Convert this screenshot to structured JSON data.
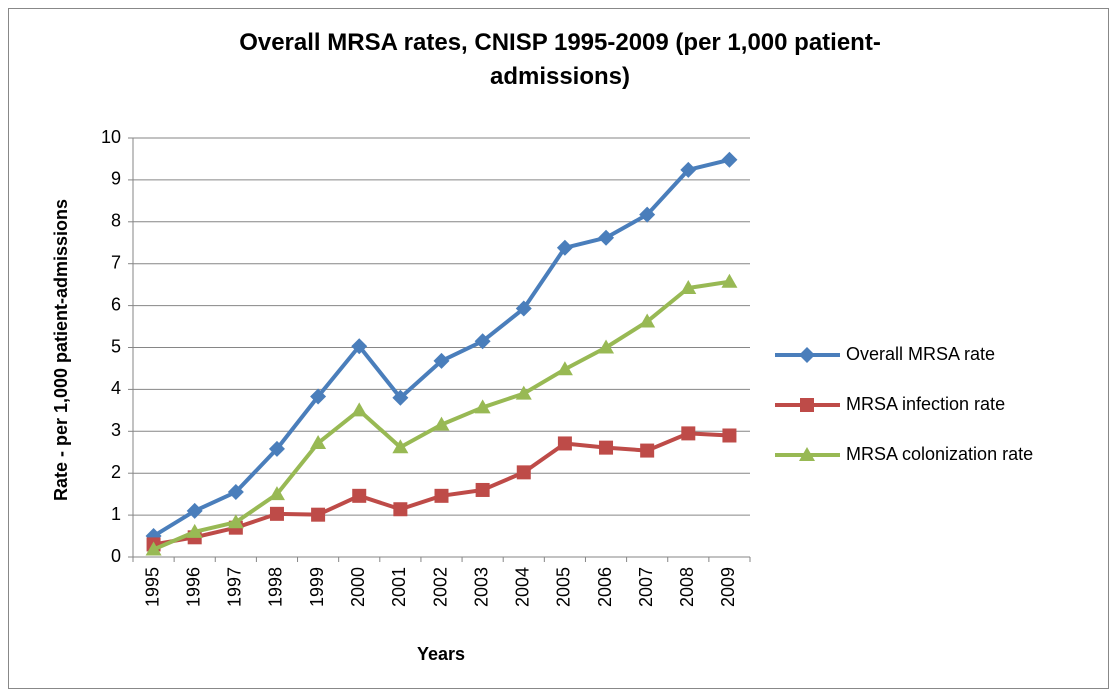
{
  "chart_data": {
    "type": "line",
    "title": "Overall MRSA rates, CNISP 1995-2009 (per 1,000 patient-admissions)",
    "x_label": "Years",
    "y_label": "Rate - per 1,000 patient-admissions",
    "categories": [
      "1995",
      "1996",
      "1997",
      "1998",
      "1999",
      "2000",
      "2001",
      "2002",
      "2003",
      "2004",
      "2005",
      "2006",
      "2007",
      "2008",
      "2009"
    ],
    "series": [
      {
        "name": "Overall MRSA rate",
        "color": "#4a7ebb",
        "marker": "diamond",
        "values": [
          0.5,
          1.1,
          1.55,
          2.58,
          3.83,
          5.03,
          3.8,
          4.68,
          5.15,
          5.93,
          7.38,
          7.62,
          8.17,
          9.24,
          9.48
        ]
      },
      {
        "name": "MRSA infection rate",
        "color": "#be4b48",
        "marker": "square",
        "values": [
          0.3,
          0.47,
          0.7,
          1.03,
          1.01,
          1.46,
          1.14,
          1.46,
          1.6,
          2.02,
          2.71,
          2.61,
          2.54,
          2.95,
          2.9
        ]
      },
      {
        "name": "MRSA colonization rate",
        "color": "#98b954",
        "marker": "triangle",
        "values": [
          0.18,
          0.6,
          0.83,
          1.5,
          2.72,
          3.5,
          2.62,
          3.16,
          3.57,
          3.9,
          4.48,
          5.0,
          5.62,
          6.42,
          6.57
        ]
      }
    ],
    "ylim": [
      0,
      10
    ],
    "yticks": [
      0,
      1,
      2,
      3,
      4,
      5,
      6,
      7,
      8,
      9,
      10
    ],
    "grid": true,
    "legend": "right"
  }
}
